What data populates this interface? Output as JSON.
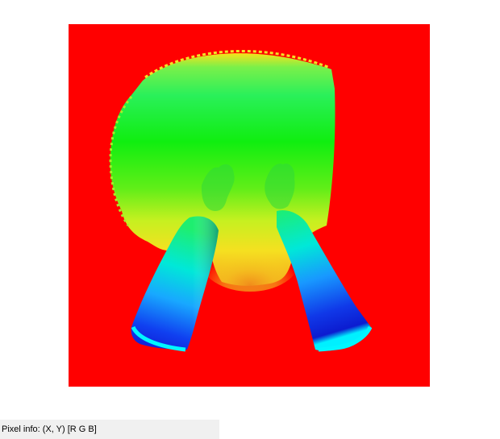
{
  "status_bar": {
    "pixel_info_label": "Pixel info: (X, Y)  [R G B]"
  },
  "image": {
    "kind": "depth-map-false-color",
    "background_color": "#ff0000",
    "colormap": [
      "#0000ff",
      "#00ffff",
      "#00ff00",
      "#ffff00",
      "#ff0000"
    ]
  }
}
